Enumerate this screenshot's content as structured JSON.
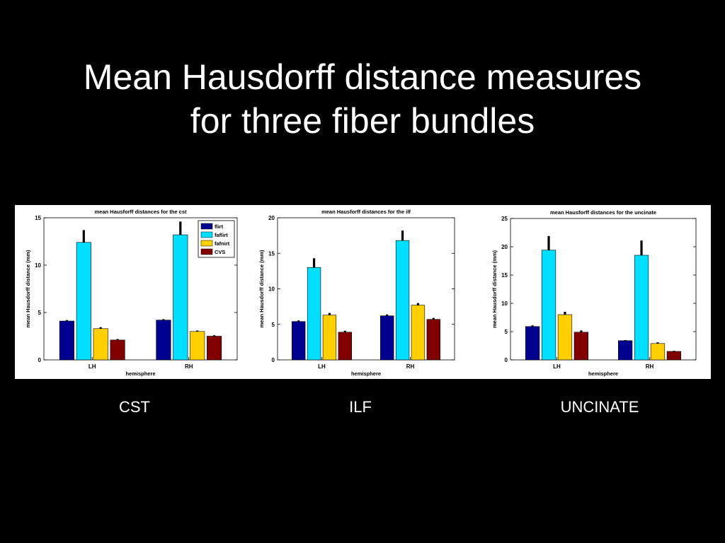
{
  "slide": {
    "title_line1": "Mean Hausdorff distance measures",
    "title_line2": "for three fiber bundles"
  },
  "captions": [
    "CST",
    "ILF",
    "UNCINATE"
  ],
  "colors": {
    "flirt": "#00008f",
    "faflirt": "#00dfff",
    "fafnirt": "#ffcf00",
    "CVS": "#800000"
  },
  "chart_data": [
    {
      "type": "bar",
      "title": "mean Hausforff distances for the cst",
      "xlabel": "hemisphere",
      "ylabel": "mean Hausdorff distance (mm)",
      "ylim": [
        0,
        15
      ],
      "yticks": [
        0,
        5,
        10,
        15
      ],
      "grid": false,
      "legend": "top-right",
      "categories": [
        "LH",
        "RH"
      ],
      "series": [
        {
          "name": "flirt",
          "values": [
            4.1,
            4.2
          ],
          "errors": [
            0.1,
            0.1
          ]
        },
        {
          "name": "faflirt",
          "values": [
            12.4,
            13.2
          ],
          "errors": [
            1.3,
            1.4
          ]
        },
        {
          "name": "fafnirt",
          "values": [
            3.3,
            3.0
          ],
          "errors": [
            0.15,
            0.1
          ]
        },
        {
          "name": "CVS",
          "values": [
            2.1,
            2.5
          ],
          "errors": [
            0.1,
            0.1
          ]
        }
      ]
    },
    {
      "type": "bar",
      "title": "mean Hausforff distances for the ilf",
      "xlabel": "hemisphere",
      "ylabel": "mean Hausdorff distance (mm)",
      "ylim": [
        0,
        20
      ],
      "yticks": [
        0,
        5,
        10,
        15,
        20
      ],
      "grid": false,
      "legend": "none",
      "categories": [
        "LH",
        "RH"
      ],
      "series": [
        {
          "name": "flirt",
          "values": [
            5.4,
            6.2
          ],
          "errors": [
            0.15,
            0.2
          ]
        },
        {
          "name": "faflirt",
          "values": [
            13.0,
            16.8
          ],
          "errors": [
            1.3,
            1.4
          ]
        },
        {
          "name": "fafnirt",
          "values": [
            6.3,
            7.7
          ],
          "errors": [
            0.3,
            0.3
          ]
        },
        {
          "name": "CVS",
          "values": [
            3.9,
            5.7
          ],
          "errors": [
            0.2,
            0.2
          ]
        }
      ]
    },
    {
      "type": "bar",
      "title": "mean Hausforff distances for the uncinate",
      "xlabel": "hemisphere",
      "ylabel": "mean Hausdorff distance (mm)",
      "ylim": [
        0,
        25
      ],
      "yticks": [
        0,
        5,
        10,
        15,
        20,
        25
      ],
      "grid": false,
      "legend": "none",
      "categories": [
        "LH",
        "RH"
      ],
      "series": [
        {
          "name": "flirt",
          "values": [
            5.9,
            3.4
          ],
          "errors": [
            0.2,
            0.1
          ]
        },
        {
          "name": "faflirt",
          "values": [
            19.4,
            18.5
          ],
          "errors": [
            2.5,
            2.6
          ]
        },
        {
          "name": "fafnirt",
          "values": [
            8.0,
            2.9
          ],
          "errors": [
            0.5,
            0.2
          ]
        },
        {
          "name": "CVS",
          "values": [
            4.9,
            1.5
          ],
          "errors": [
            0.3,
            0.1
          ]
        }
      ]
    }
  ]
}
